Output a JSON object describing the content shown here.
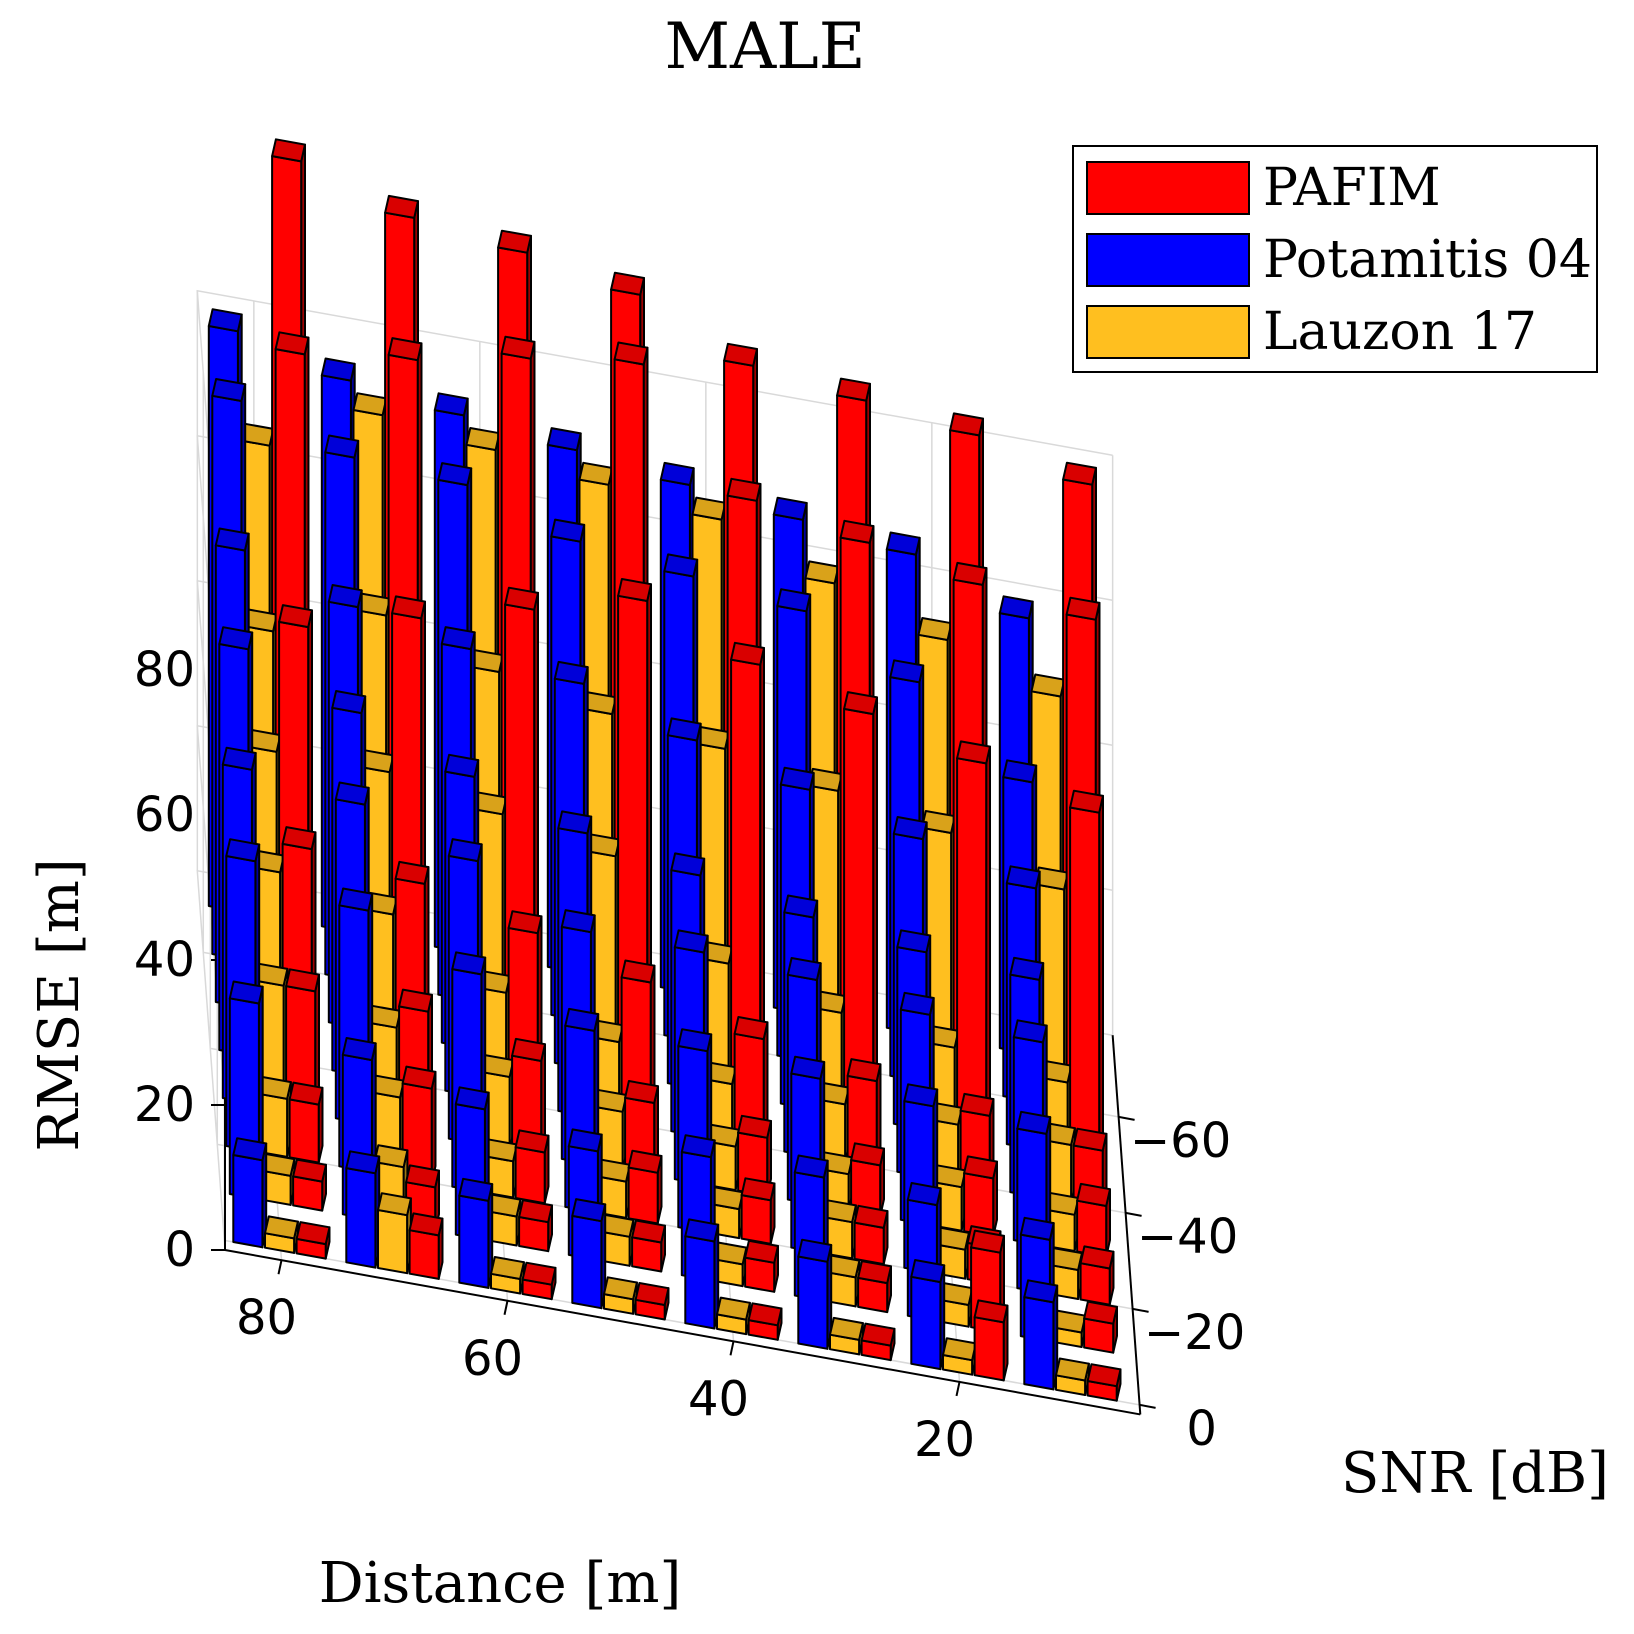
{
  "chart_data": {
    "type": "bar3d",
    "title": "MALE",
    "xlabel": "Distance [m]",
    "ylabel": "SNR [dB]",
    "zlabel": "RMSE [m]",
    "legend_position": "top-right",
    "grid": true,
    "distance": [
      80,
      70,
      60,
      50,
      40,
      30,
      20,
      10
    ],
    "snr": [
      0,
      -10,
      -20,
      -30,
      -40,
      -50,
      -60,
      -70
    ],
    "distance_ticks": [
      80,
      60,
      40,
      20
    ],
    "snr_ticks": [
      0,
      -20,
      -40,
      -60
    ],
    "zticks": [
      0,
      20,
      40,
      60,
      80
    ],
    "zlim": [
      0,
      80
    ],
    "series": [
      {
        "name": "Potamitis 04",
        "color": "#0000ff",
        "values": [
          [
            12,
            13,
            12,
            12,
            12,
            12,
            12,
            12
          ],
          [
            27,
            22,
            18,
            15,
            17,
            17,
            16,
            14
          ],
          [
            40,
            36,
            30,
            25,
            25,
            24,
            23,
            22
          ],
          [
            46,
            44,
            39,
            32,
            32,
            31,
            29,
            28
          ],
          [
            56,
            50,
            44,
            39,
            36,
            33,
            31,
            30
          ],
          [
            63,
            58,
            55,
            53,
            48,
            44,
            40,
            36
          ],
          [
            77,
            72,
            71,
            66,
            64,
            62,
            55,
            44
          ],
          [
            80,
            76,
            74,
            72,
            70,
            68,
            66,
            60
          ]
        ]
      },
      {
        "name": "Lauzon 17",
        "color": "#ffbf1f",
        "values": [
          [
            2,
            8,
            2,
            2,
            2,
            2,
            2,
            2
          ],
          [
            4,
            8,
            4,
            4,
            3,
            4,
            3,
            2
          ],
          [
            8,
            11,
            5,
            5,
            4,
            5,
            4,
            4
          ],
          [
            17,
            14,
            10,
            8,
            6,
            5,
            6,
            5
          ],
          [
            26,
            23,
            15,
            11,
            8,
            8,
            8,
            8
          ],
          [
            36,
            36,
            33,
            30,
            18,
            14,
            12,
            10
          ],
          [
            46,
            51,
            46,
            43,
            41,
            38,
            35,
            30
          ],
          [
            65,
            72,
            70,
            68,
            66,
            60,
            55,
            50
          ]
        ]
      },
      {
        "name": "PAFIM",
        "color": "#ff0000",
        "values": [
          [
            2,
            6,
            2,
            2,
            2,
            2,
            8,
            2
          ],
          [
            4,
            6,
            4,
            4,
            4,
            4,
            11,
            4
          ],
          [
            8,
            13,
            7,
            7,
            6,
            5,
            5,
            5
          ],
          [
            17,
            17,
            13,
            10,
            8,
            7,
            8,
            7
          ],
          [
            30,
            28,
            24,
            20,
            15,
            12,
            10,
            8
          ],
          [
            54,
            58,
            62,
            66,
            60,
            56,
            52,
            48
          ],
          [
            85,
            87,
            90,
            92,
            76,
            73,
            70,
            68
          ],
          [
            105,
            100,
            98,
            95,
            88,
            86,
            84,
            80
          ]
        ]
      }
    ]
  }
}
